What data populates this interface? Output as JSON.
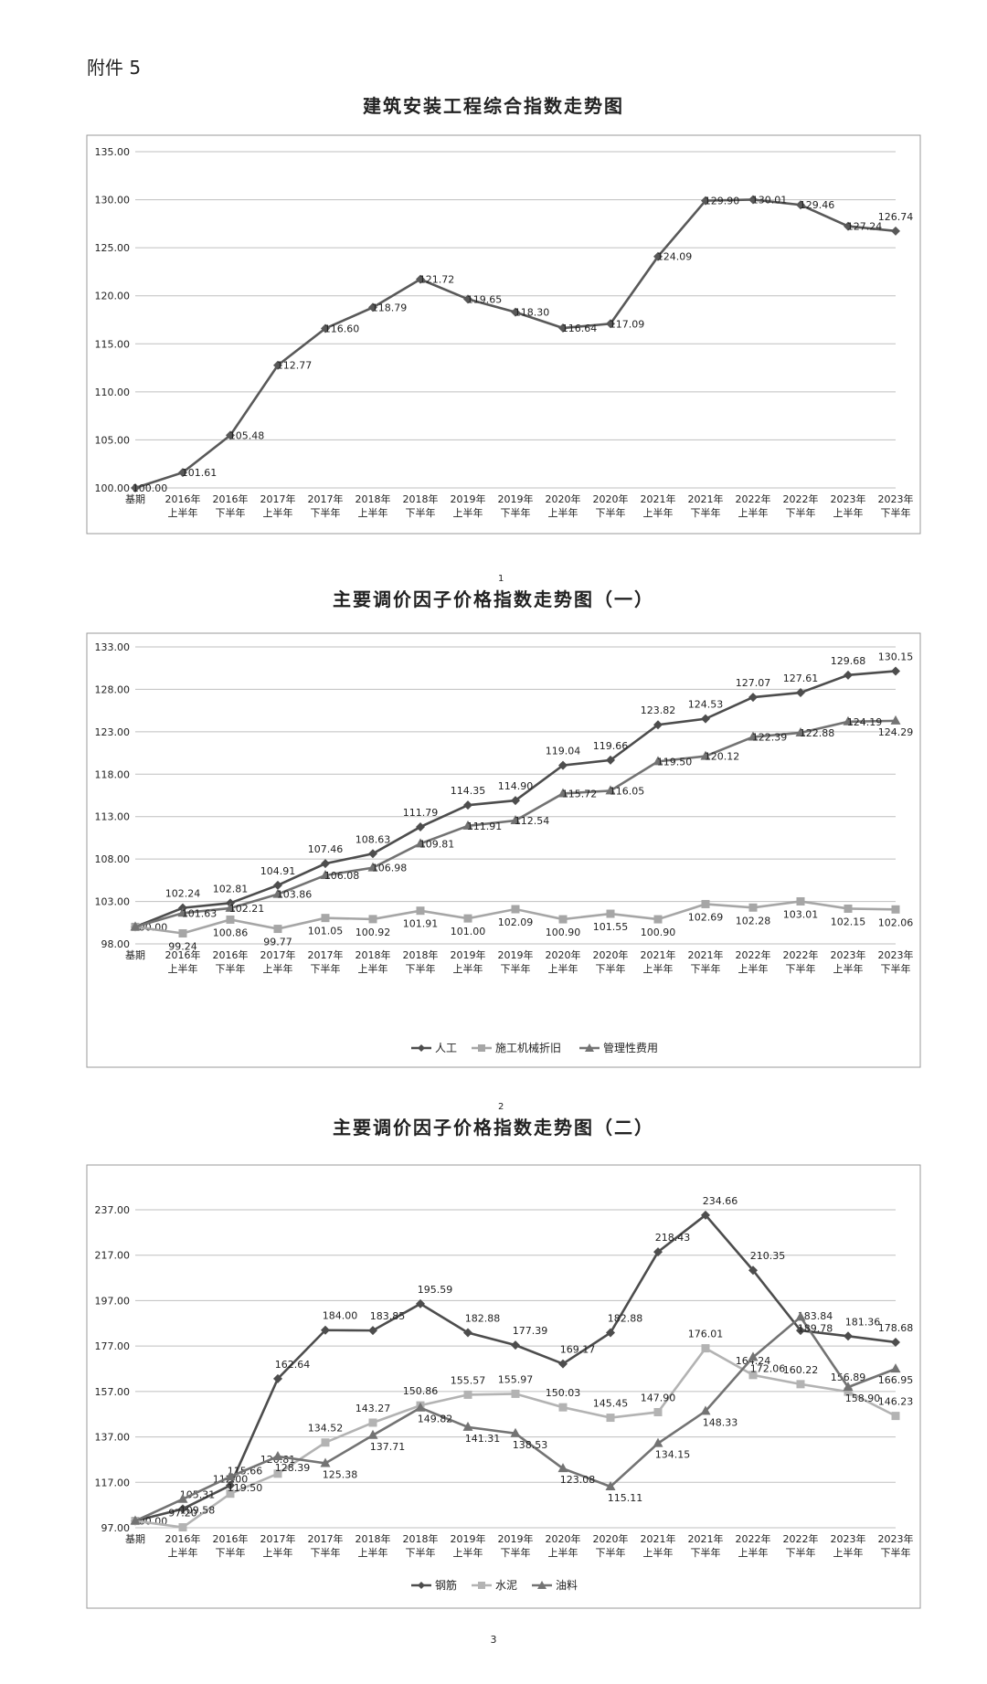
{
  "attachment_label": "附件 5",
  "page_number": "3",
  "charts": [
    {
      "title": "建筑安装工程综合指数走势图",
      "footnote": "",
      "categories": [
        [
          "基期",
          ""
        ],
        [
          "2016年",
          "上半年"
        ],
        [
          "2016年",
          "下半年"
        ],
        [
          "2017年",
          "上半年"
        ],
        [
          "2017年",
          "下半年"
        ],
        [
          "2018年",
          "上半年"
        ],
        [
          "2018年",
          "下半年"
        ],
        [
          "2019年",
          "上半年"
        ],
        [
          "2019年",
          "下半年"
        ],
        [
          "2020年",
          "上半年"
        ],
        [
          "2020年",
          "下半年"
        ],
        [
          "2021年",
          "上半年"
        ],
        [
          "2021年",
          "下半年"
        ],
        [
          "2022年",
          "上半年"
        ],
        [
          "2022年",
          "下半年"
        ],
        [
          "2023年",
          "上半年"
        ],
        [
          "2023年",
          "下半年"
        ]
      ],
      "ylim": [
        100,
        135
      ],
      "yticks": [
        "100.00",
        "105.00",
        "110.00",
        "115.00",
        "120.00",
        "125.00",
        "130.00",
        "135.00"
      ],
      "legend": false,
      "series": [
        {
          "name": "",
          "color": "#595959",
          "marker": "diamond",
          "values": [
            100.0,
            101.61,
            105.48,
            112.77,
            116.6,
            118.79,
            121.72,
            119.65,
            118.3,
            116.64,
            117.09,
            124.09,
            129.9,
            130.01,
            129.46,
            127.24,
            126.74
          ],
          "labels": [
            "100.00",
            "101.61",
            "105.48",
            "112.77",
            "116.60",
            "118.79",
            "121.72",
            "119.65",
            "118.30",
            "116.64",
            "117.09",
            "124.09",
            "129.90",
            "130.01",
            "129.46",
            "127.24",
            "126.74"
          ]
        }
      ]
    },
    {
      "title": "主要调价因子价格指数走势图（一）",
      "footnote": "1",
      "categories": [
        [
          "基期",
          ""
        ],
        [
          "2016年",
          "上半年"
        ],
        [
          "2016年",
          "下半年"
        ],
        [
          "2017年",
          "上半年"
        ],
        [
          "2017年",
          "下半年"
        ],
        [
          "2018年",
          "上半年"
        ],
        [
          "2018年",
          "下半年"
        ],
        [
          "2019年",
          "上半年"
        ],
        [
          "2019年",
          "下半年"
        ],
        [
          "2020年",
          "上半年"
        ],
        [
          "2020年",
          "下半年"
        ],
        [
          "2021年",
          "上半年"
        ],
        [
          "2021年",
          "下半年"
        ],
        [
          "2022年",
          "上半年"
        ],
        [
          "2022年",
          "下半年"
        ],
        [
          "2023年",
          "上半年"
        ],
        [
          "2023年",
          "下半年"
        ]
      ],
      "ylim": [
        98,
        133
      ],
      "yticks": [
        "98.00",
        "103.00",
        "108.00",
        "113.00",
        "118.00",
        "123.00",
        "128.00",
        "133.00"
      ],
      "legend": true,
      "series": [
        {
          "name": "人工",
          "color": "#4d4d4d",
          "marker": "diamond",
          "values": [
            100.0,
            102.24,
            102.81,
            104.91,
            107.46,
            108.63,
            111.79,
            114.35,
            114.9,
            119.04,
            119.66,
            123.82,
            124.53,
            127.07,
            127.61,
            129.68,
            130.15
          ],
          "labels": [
            "100.00",
            "102.24",
            "102.81",
            "104.91",
            "107.46",
            "108.63",
            "111.79",
            "114.35",
            "114.90",
            "119.04",
            "119.66",
            "123.82",
            "124.53",
            "127.07",
            "127.61",
            "129.68",
            "130.15"
          ]
        },
        {
          "name": "施工机械折旧",
          "color": "#a6a6a6",
          "marker": "square",
          "values": [
            100.0,
            99.24,
            100.86,
            99.77,
            101.05,
            100.92,
            101.91,
            101.0,
            102.09,
            100.9,
            101.55,
            100.9,
            102.69,
            102.28,
            103.01,
            102.15,
            102.06
          ],
          "labels": [
            "",
            "99.24",
            "100.86",
            "99.77",
            "101.05",
            "100.92",
            "101.91",
            "101.00",
            "102.09",
            "100.90",
            "101.55",
            "100.90",
            "102.69",
            "102.28",
            "103.01",
            "102.15",
            "102.06"
          ]
        },
        {
          "name": "管理性费用",
          "color": "#737373",
          "marker": "triangle",
          "values": [
            100.0,
            101.63,
            102.21,
            103.86,
            106.08,
            106.98,
            109.81,
            111.91,
            112.54,
            115.72,
            116.05,
            119.5,
            120.12,
            122.39,
            122.88,
            124.19,
            124.29
          ],
          "labels": [
            "",
            "101.63",
            "102.21",
            "103.86",
            "106.08",
            "106.98",
            "109.81",
            "111.91",
            "112.54",
            "115.72",
            "116.05",
            "119.50",
            "120.12",
            "122.39",
            "122.88",
            "124.19",
            "124.29"
          ]
        }
      ]
    },
    {
      "title": "主要调价因子价格指数走势图（二）",
      "footnote": "2",
      "categories": [
        [
          "基期",
          ""
        ],
        [
          "2016年",
          "上半年"
        ],
        [
          "2016年",
          "下半年"
        ],
        [
          "2017年",
          "上半年"
        ],
        [
          "2017年",
          "下半年"
        ],
        [
          "2018年",
          "上半年"
        ],
        [
          "2018年",
          "下半年"
        ],
        [
          "2019年",
          "上半年"
        ],
        [
          "2019年",
          "下半年"
        ],
        [
          "2020年",
          "上半年"
        ],
        [
          "2020年",
          "下半年"
        ],
        [
          "2021年",
          "上半年"
        ],
        [
          "2021年",
          "下半年"
        ],
        [
          "2022年",
          "上半年"
        ],
        [
          "2022年",
          "下半年"
        ],
        [
          "2023年",
          "上半年"
        ],
        [
          "2023年",
          "下半年"
        ]
      ],
      "ylim": [
        97,
        237
      ],
      "yticks": [
        "97.00",
        "117.00",
        "137.00",
        "157.00",
        "177.00",
        "197.00",
        "217.00",
        "237.00"
      ],
      "legend": true,
      "series": [
        {
          "name": "钢筋",
          "color": "#4d4d4d",
          "marker": "diamond",
          "values": [
            100.0,
            105.31,
            115.66,
            162.64,
            184.0,
            183.85,
            195.59,
            182.88,
            177.39,
            169.17,
            182.88,
            218.43,
            234.66,
            210.35,
            183.84,
            181.36,
            178.68
          ],
          "labels": [
            "100.00",
            "105.31",
            "115.66",
            "162.64",
            "184.00",
            "183.85",
            "195.59",
            "182.88",
            "177.39",
            "169.17",
            "182.88",
            "218.43",
            "234.66",
            "210.35",
            "183.84",
            "181.36",
            "178.68"
          ]
        },
        {
          "name": "水泥",
          "color": "#b3b3b3",
          "marker": "square",
          "values": [
            100.0,
            97.2,
            112.0,
            120.81,
            134.52,
            143.27,
            150.86,
            155.57,
            155.97,
            150.03,
            145.45,
            147.9,
            176.01,
            164.24,
            160.22,
            156.89,
            146.23
          ],
          "labels": [
            "",
            "97.20",
            "112.00",
            "120.81",
            "134.52",
            "143.27",
            "150.86",
            "155.57",
            "155.97",
            "150.03",
            "145.45",
            "147.90",
            "176.01",
            "164.24",
            "160.22",
            "156.89",
            "146.23"
          ]
        },
        {
          "name": "油料",
          "color": "#737373",
          "marker": "triangle",
          "values": [
            100.0,
            109.58,
            119.5,
            128.39,
            125.38,
            137.71,
            149.82,
            141.31,
            138.53,
            123.08,
            115.11,
            134.15,
            148.33,
            172.06,
            189.78,
            158.9,
            166.95
          ],
          "labels": [
            "",
            "109.58",
            "119.50",
            "128.39",
            "125.38",
            "137.71",
            "149.82",
            "141.31",
            "138.53",
            "123.08",
            "115.11",
            "134.15",
            "148.33",
            "172.06",
            "189.78",
            "158.90",
            "166.95"
          ]
        }
      ]
    }
  ]
}
